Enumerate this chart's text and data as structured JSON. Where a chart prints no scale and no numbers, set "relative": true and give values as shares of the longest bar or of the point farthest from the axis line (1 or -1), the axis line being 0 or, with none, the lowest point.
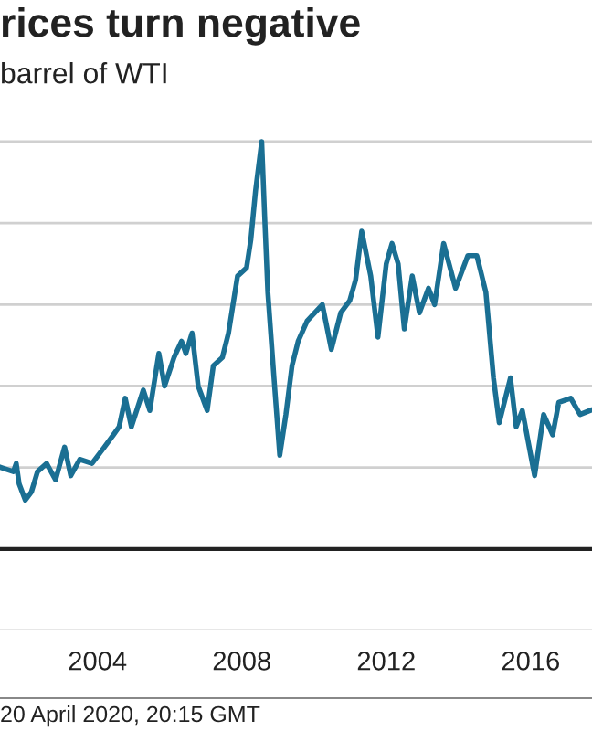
{
  "chart_data": {
    "type": "line",
    "title": "rices turn negative",
    "subtitle": "barrel of WTI",
    "annotations": [
      "20 April 2020, 20:15 GMT"
    ],
    "relative": true,
    "grid": "y",
    "xlim": [
      2001.3,
      2017.7
    ],
    "xticks": [
      2004,
      2008,
      2012,
      2016
    ],
    "series": [
      {
        "color": "#1a6f93",
        "x": [
          2001.33,
          2001.67,
          2001.75,
          2001.83,
          2002.0,
          2002.17,
          2002.34,
          2002.59,
          2002.84,
          2003.09,
          2003.26,
          2003.51,
          2003.85,
          2004.19,
          2004.44,
          2004.6,
          2004.77,
          2004.94,
          2005.27,
          2005.45,
          2005.7,
          2005.86,
          2006.12,
          2006.33,
          2006.45,
          2006.62,
          2006.79,
          2007.04,
          2007.21,
          2007.46,
          2007.63,
          2007.88,
          2008.13,
          2008.25,
          2008.38,
          2008.55,
          2008.63,
          2008.72,
          2008.89,
          2009.05,
          2009.22,
          2009.39,
          2009.56,
          2009.81,
          2010.23,
          2010.48,
          2010.74,
          2010.99,
          2011.15,
          2011.32,
          2011.57,
          2011.77,
          2012.0,
          2012.16,
          2012.33,
          2012.5,
          2012.72,
          2012.92,
          2013.17,
          2013.34,
          2013.59,
          2013.92,
          2014.26,
          2014.51,
          2014.76,
          2014.97,
          2015.13,
          2015.44,
          2015.6,
          2015.77,
          2016.11,
          2016.36,
          2016.61,
          2016.78,
          2017.11,
          2017.37,
          2017.65
        ],
        "values": [
          0.2,
          0.19,
          0.21,
          0.16,
          0.12,
          0.14,
          0.19,
          0.21,
          0.17,
          0.25,
          0.18,
          0.22,
          0.21,
          0.25,
          0.28,
          0.3,
          0.37,
          0.3,
          0.39,
          0.34,
          0.48,
          0.4,
          0.47,
          0.51,
          0.48,
          0.53,
          0.4,
          0.34,
          0.45,
          0.47,
          0.53,
          0.67,
          0.69,
          0.76,
          0.88,
          1.0,
          0.82,
          0.63,
          0.42,
          0.23,
          0.33,
          0.45,
          0.51,
          0.56,
          0.6,
          0.49,
          0.58,
          0.61,
          0.66,
          0.78,
          0.67,
          0.52,
          0.7,
          0.75,
          0.7,
          0.54,
          0.67,
          0.58,
          0.64,
          0.6,
          0.75,
          0.64,
          0.72,
          0.72,
          0.63,
          0.42,
          0.31,
          0.42,
          0.3,
          0.34,
          0.18,
          0.33,
          0.28,
          0.36,
          0.37,
          0.33,
          0.34
        ]
      }
    ]
  }
}
